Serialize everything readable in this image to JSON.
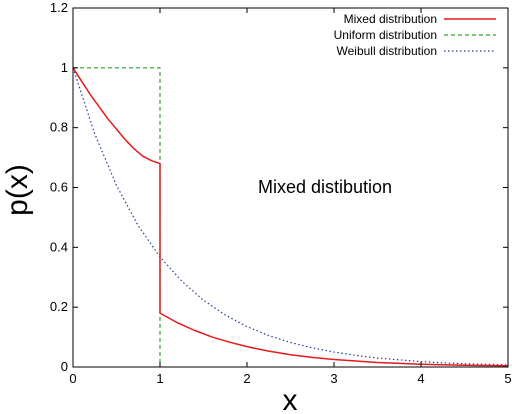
{
  "chart_data": {
    "type": "line",
    "xlabel": "x",
    "ylabel": "p(x)",
    "xlim": [
      0,
      5
    ],
    "ylim": [
      0,
      1.2
    ],
    "xticks": [
      "0",
      "1",
      "2",
      "3",
      "4",
      "5"
    ],
    "yticks": [
      "0",
      "0.2",
      "0.4",
      "0.6",
      "0.8",
      "1",
      "1.2"
    ],
    "grid": false,
    "legend_position": "top-right",
    "annotation": "Mixed distibution",
    "series": [
      {
        "name": "Mixed distribution",
        "color": "#e41a1c",
        "style": "solid",
        "x": [
          0,
          0.1,
          0.2,
          0.3,
          0.4,
          0.5,
          0.6,
          0.7,
          0.8,
          0.9,
          1.0,
          1.0,
          1.0,
          1.2,
          1.4,
          1.6,
          1.8,
          2.0,
          2.25,
          2.5,
          2.75,
          3.0,
          3.5,
          4.0,
          4.5,
          5.0
        ],
        "y": [
          1.0,
          0.955,
          0.91,
          0.87,
          0.83,
          0.795,
          0.76,
          0.73,
          0.705,
          0.69,
          0.68,
          0.18,
          0.18,
          0.148,
          0.122,
          0.1,
          0.083,
          0.068,
          0.053,
          0.041,
          0.032,
          0.025,
          0.015,
          0.009,
          0.006,
          0.004
        ]
      },
      {
        "name": "Uniform distribution",
        "color": "#2ca02c",
        "style": "dashed",
        "x": [
          0,
          1,
          1
        ],
        "y": [
          1,
          1,
          0
        ]
      },
      {
        "name": "Weibull distribution",
        "color": "#1f3f99",
        "style": "dotted",
        "x": [
          0,
          0.25,
          0.5,
          0.75,
          1.0,
          1.25,
          1.5,
          1.75,
          2.0,
          2.25,
          2.5,
          2.75,
          3.0,
          3.25,
          3.5,
          3.75,
          4.0,
          4.25,
          4.5,
          4.75,
          5.0
        ],
        "y": [
          1.0,
          0.779,
          0.607,
          0.472,
          0.368,
          0.287,
          0.223,
          0.174,
          0.135,
          0.105,
          0.082,
          0.064,
          0.05,
          0.039,
          0.03,
          0.024,
          0.018,
          0.014,
          0.011,
          0.009,
          0.007
        ]
      }
    ]
  }
}
